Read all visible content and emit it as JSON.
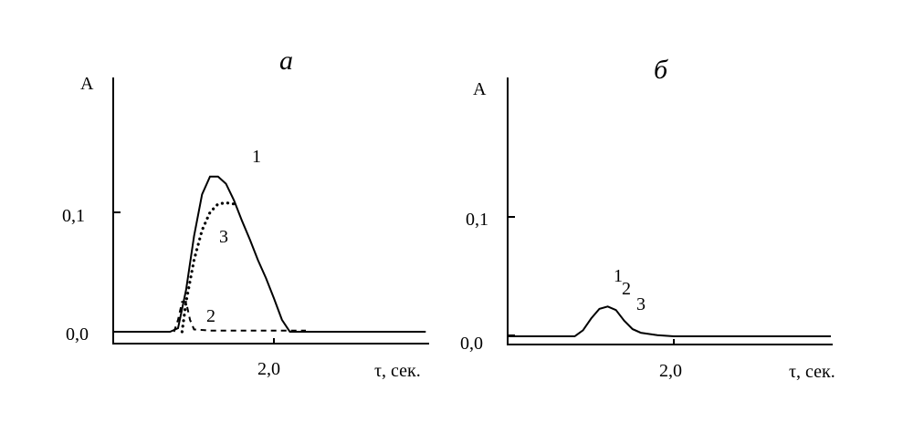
{
  "chart_data": [
    {
      "type": "line",
      "panel": "a",
      "ylabel": "A",
      "xlabel": "τ, сек.",
      "yticks": [
        "0,0",
        "0,1"
      ],
      "xticks": [
        "2,0"
      ],
      "curve_labels": [
        "1",
        "2",
        "3"
      ],
      "series": [
        {
          "name": "1",
          "style": "solid",
          "points": [
            [
              0.0,
              0.0
            ],
            [
              0.7,
              0.0
            ],
            [
              0.8,
              0.003
            ],
            [
              0.9,
              0.035
            ],
            [
              1.0,
              0.08
            ],
            [
              1.1,
              0.115
            ],
            [
              1.2,
              0.13
            ],
            [
              1.3,
              0.13
            ],
            [
              1.4,
              0.124
            ],
            [
              1.5,
              0.11
            ],
            [
              1.6,
              0.093
            ],
            [
              1.7,
              0.077
            ],
            [
              1.8,
              0.06
            ],
            [
              1.9,
              0.045
            ],
            [
              2.0,
              0.028
            ],
            [
              2.1,
              0.01
            ],
            [
              2.2,
              0.0
            ],
            [
              3.9,
              0.0
            ]
          ]
        },
        {
          "name": "2",
          "style": "dashed",
          "points": [
            [
              0.75,
              0.0
            ],
            [
              0.8,
              0.01
            ],
            [
              0.85,
              0.025
            ],
            [
              0.9,
              0.025
            ],
            [
              0.95,
              0.01
            ],
            [
              1.0,
              0.002
            ],
            [
              1.2,
              0.001
            ],
            [
              1.6,
              0.001
            ],
            [
              2.0,
              0.001
            ],
            [
              2.4,
              0.001
            ]
          ]
        },
        {
          "name": "3",
          "style": "dotted",
          "points": [
            [
              0.85,
              0.0
            ],
            [
              0.9,
              0.025
            ],
            [
              1.0,
              0.06
            ],
            [
              1.1,
              0.085
            ],
            [
              1.2,
              0.1
            ],
            [
              1.3,
              0.107
            ],
            [
              1.4,
              0.108
            ],
            [
              1.5,
              0.107
            ]
          ]
        }
      ]
    },
    {
      "type": "line",
      "panel": "б",
      "ylabel": "A",
      "xlabel": "τ, сек.",
      "yticks": [
        "0,0",
        "0,1"
      ],
      "xticks": [
        "2,0"
      ],
      "curve_labels": [
        "1",
        "2",
        "3"
      ],
      "series": [
        {
          "name": "1",
          "style": "solid",
          "points": [
            [
              0.0,
              0.0
            ],
            [
              0.8,
              0.0
            ],
            [
              0.9,
              0.005
            ],
            [
              1.0,
              0.015
            ],
            [
              1.1,
              0.023
            ],
            [
              1.2,
              0.025
            ],
            [
              1.3,
              0.022
            ],
            [
              1.4,
              0.013
            ],
            [
              1.5,
              0.006
            ],
            [
              1.6,
              0.003
            ],
            [
              1.8,
              0.001
            ],
            [
              2.0,
              0.0
            ],
            [
              3.9,
              0.0
            ]
          ]
        }
      ]
    }
  ]
}
